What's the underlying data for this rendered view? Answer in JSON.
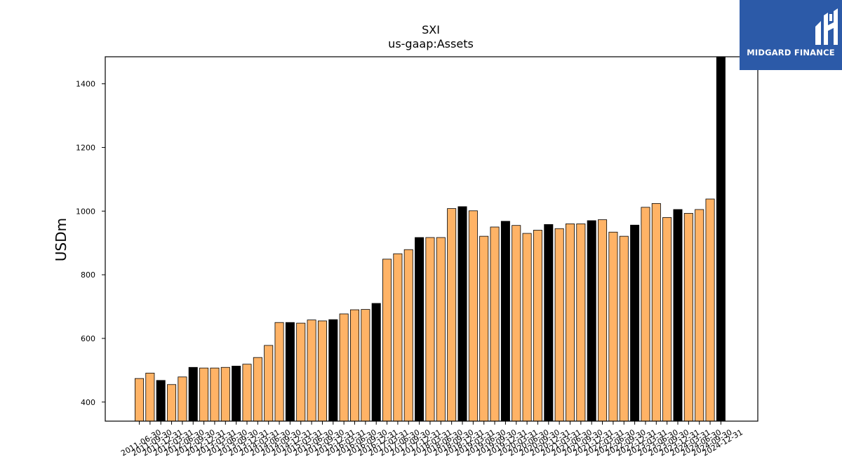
{
  "brand": {
    "name": "MIDGARD FINANCE",
    "color": "#2c5aa8"
  },
  "chart_data": {
    "type": "bar",
    "title": "SXI",
    "subtitle": "us-gaap:Assets",
    "ylabel": "USDm",
    "xlabel": "",
    "ylim": [
      340,
      1485
    ],
    "yticks": [
      400,
      600,
      800,
      1000,
      1200,
      1400
    ],
    "grid": false,
    "colors": {
      "default": "#ffb366",
      "highlight": "#000000",
      "edge": "#000000"
    },
    "categories": [
      "2011-06-30",
      "2011-09-30",
      "2011-12-31",
      "2012-03-31",
      "2012-06-30",
      "2012-09-30",
      "2012-12-31",
      "2013-03-31",
      "2013-06-30",
      "2013-09-30",
      "2013-12-31",
      "2014-03-31",
      "2014-06-30",
      "2014-09-30",
      "2014-12-31",
      "2015-03-31",
      "2015-06-30",
      "2015-09-30",
      "2015-12-31",
      "2016-03-31",
      "2016-06-30",
      "2016-09-30",
      "2016-12-31",
      "2017-03-31",
      "2017-06-30",
      "2017-09-30",
      "2017-12-31",
      "2018-03-31",
      "2018-06-30",
      "2018-09-30",
      "2018-12-31",
      "2019-03-31",
      "2019-06-30",
      "2019-09-30",
      "2019-12-31",
      "2020-03-31",
      "2020-06-30",
      "2020-09-30",
      "2020-12-31",
      "2021-03-31",
      "2021-06-30",
      "2021-09-30",
      "2021-12-31",
      "2022-03-31",
      "2022-06-30",
      "2022-09-30",
      "2022-12-31",
      "2023-03-31",
      "2023-06-30",
      "2023-09-30",
      "2023-12-31",
      "2024-03-31",
      "2024-06-30",
      "2024-09-30",
      "2024-12-31"
    ],
    "values": [
      474,
      491,
      468,
      455,
      479,
      509,
      507,
      507,
      509,
      513,
      519,
      540,
      578,
      650,
      650,
      648,
      658,
      655,
      659,
      677,
      690,
      691,
      710,
      849,
      866,
      879,
      917,
      917,
      917,
      1008,
      1014,
      1001,
      921,
      950,
      968,
      955,
      930,
      940,
      958,
      945,
      960,
      960,
      970,
      973,
      934,
      921,
      956,
      1012,
      1024,
      980,
      1005,
      993,
      1005,
      1038,
      1485
    ],
    "highlight_indices": [
      2,
      5,
      9,
      14,
      18,
      22,
      26,
      30,
      34,
      38,
      42,
      46,
      50,
      54
    ],
    "xtick_labels": [
      "2011-06-30",
      "2011-09-30",
      "2011-12-31",
      "2012-03-31",
      "2012-06-30",
      "2012-09-30",
      "2012-12-31",
      "2013-03-31",
      "2013-06-30",
      "2013-09-30",
      "2013-12-31",
      "2014-03-31",
      "2014-06-30",
      "2014-09-30",
      "2014-12-31",
      "2015-03-31",
      "2015-06-30",
      "2015-09-30",
      "2015-12-31",
      "2016-03-31",
      "2016-06-30",
      "2016-09-30",
      "2016-12-31",
      "2017-03-31",
      "2017-06-30",
      "2017-09-30",
      "2017-12-31",
      "2018-03-31",
      "2018-06-30",
      "2018-09-30",
      "2018-12-31",
      "2019-03-31",
      "2019-06-30",
      "2019-09-30",
      "2019-12-31",
      "2020-03-31",
      "2020-06-30",
      "2020-09-30",
      "2020-12-31",
      "2021-03-31",
      "2021-06-30",
      "2021-09-30",
      "2021-12-31",
      "2022-03-31",
      "2022-06-30",
      "2022-09-30",
      "2022-12-31",
      "2023-03-31",
      "2023-06-30",
      "2023-09-30",
      "2023-12-31",
      "2024-03-31",
      "2024-06-30",
      "2024-09-30",
      "2024-12-31"
    ]
  }
}
